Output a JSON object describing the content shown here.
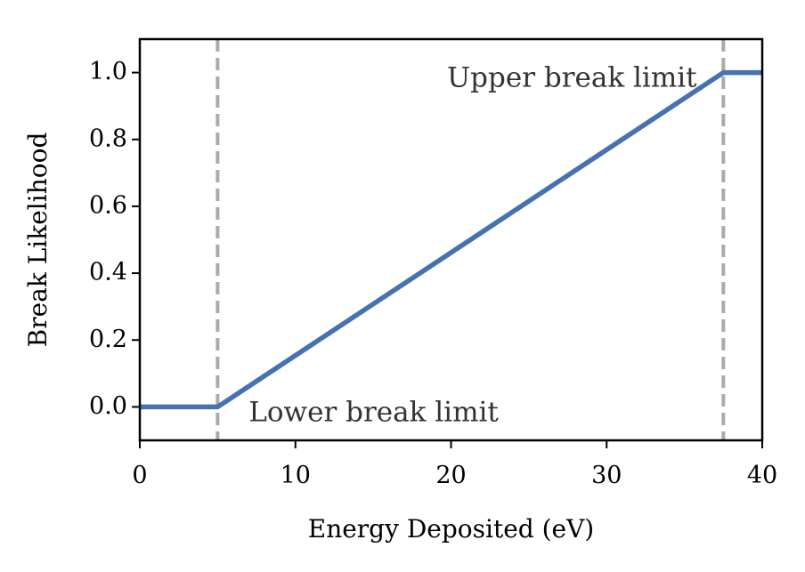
{
  "chart_data": {
    "type": "line",
    "title": "",
    "xlabel": "Energy Deposited (eV)",
    "ylabel": "Break Likelihood",
    "xlim": [
      0,
      40
    ],
    "ylim": [
      -0.1,
      1.1
    ],
    "xticks": [
      0,
      10,
      20,
      30,
      40
    ],
    "xtick_labels": [
      "0",
      "10",
      "20",
      "30",
      "40"
    ],
    "yticks": [
      0.0,
      0.2,
      0.4,
      0.6,
      0.8,
      1.0
    ],
    "ytick_labels": [
      "0.0",
      "0.2",
      "0.4",
      "0.6",
      "0.8",
      "1.0"
    ],
    "grid": false,
    "series": [
      {
        "color": "#4672b0",
        "x": [
          0,
          5,
          37.5,
          40
        ],
        "y": [
          0,
          0,
          1,
          1
        ]
      }
    ],
    "vlines": [
      {
        "x": 5,
        "color": "#aaaaaa",
        "style": "dashed"
      },
      {
        "x": 37.5,
        "color": "#aaaaaa",
        "style": "dashed"
      }
    ],
    "annotations": [
      {
        "text": "Lower break limit",
        "x": 7,
        "y": -0.02,
        "anchor": "start"
      },
      {
        "text": "Upper break limit",
        "x": 35.8,
        "y": 0.98,
        "anchor": "end"
      }
    ]
  }
}
